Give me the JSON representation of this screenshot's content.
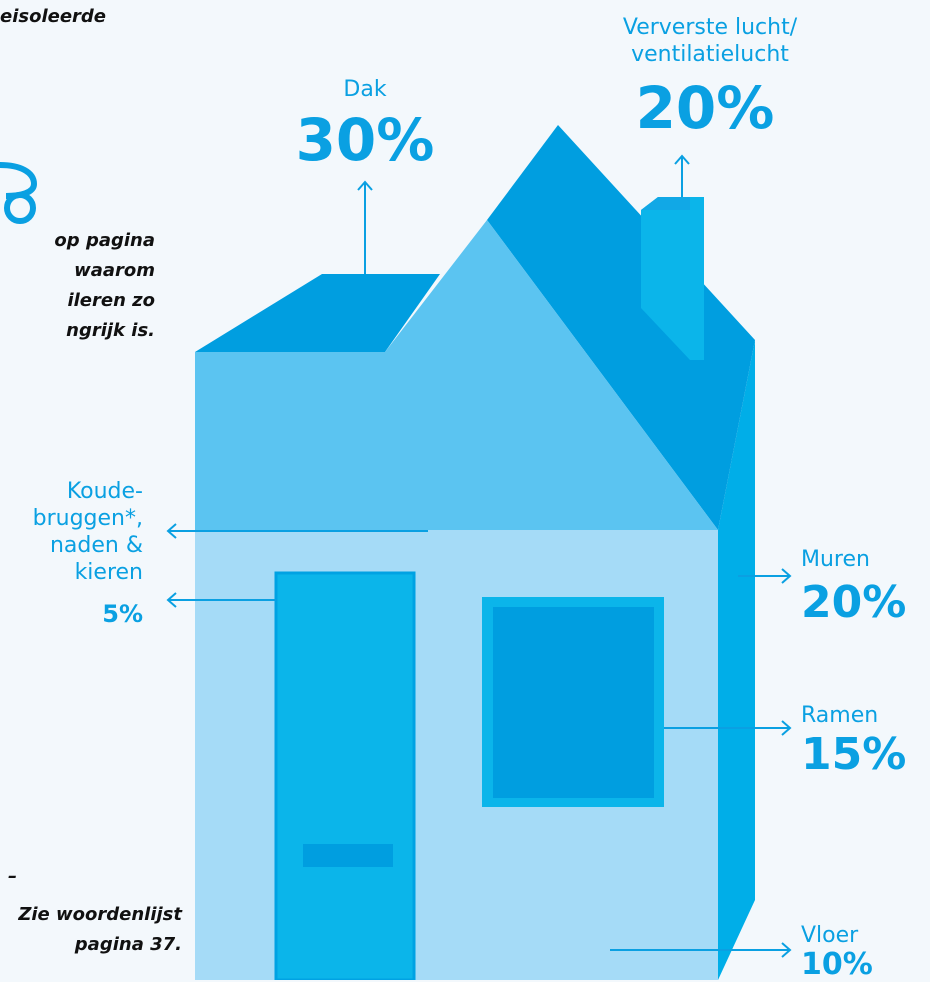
{
  "top_note": "eisoleerde",
  "side_note": "op pagina\nwaarom\nileren zo\nngrijk is.",
  "footnote": "Zie woordenlijst\npagina 37.",
  "footnote_dash": "–",
  "labels": {
    "dak": {
      "name": "Dak",
      "value": "30%"
    },
    "ventilatie": {
      "name": "Ververste lucht/\nventilatielucht",
      "value": "20%"
    },
    "koudebruggen": {
      "name": "Koude-\nbruggen*,\nnaden &\nkieren",
      "value": "5%"
    },
    "muren": {
      "name": "Muren",
      "value": "20%"
    },
    "ramen": {
      "name": "Ramen",
      "value": "15%"
    },
    "vloer": {
      "name": "Vloer",
      "value": "10%"
    }
  },
  "colors": {
    "accent": "#0aa0e2",
    "roof_dark": "#009ee0",
    "gable": "#5bc4f1",
    "front_wall": "#a5dbf7",
    "side_wall": "#00aee8",
    "door": "#0bb5ea",
    "window_frame": "#0bb5ea",
    "window_glass": "#009ee0"
  }
}
